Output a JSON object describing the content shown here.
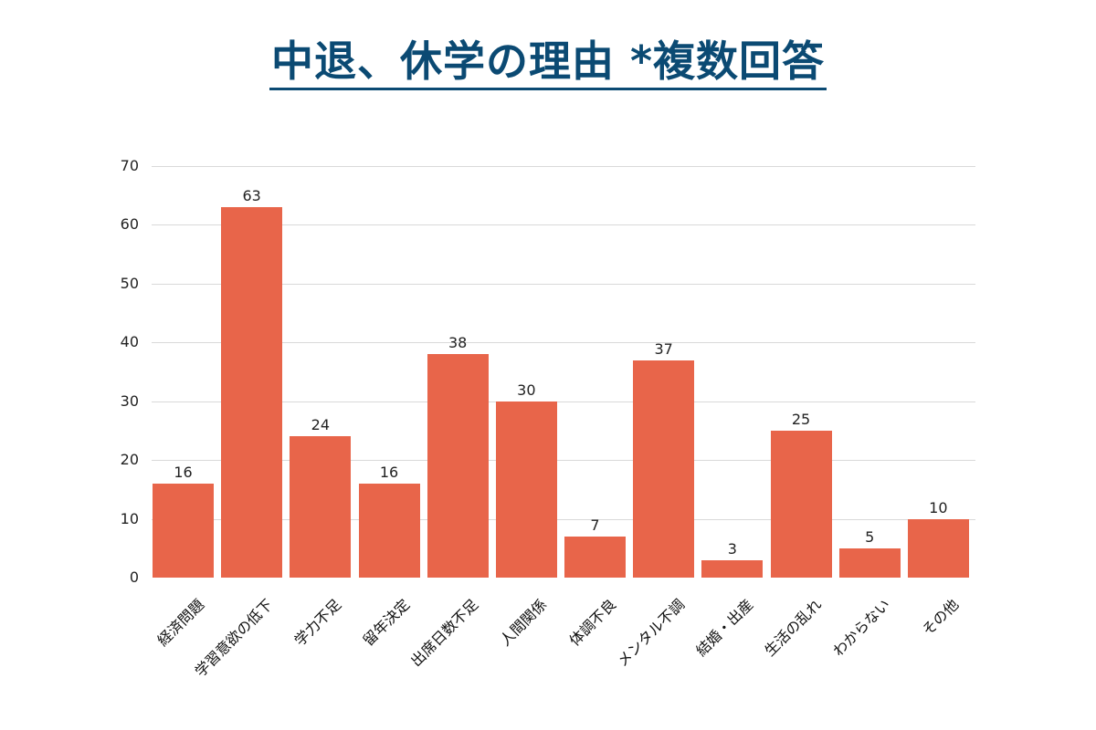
{
  "title": "中退、休学の理由 *複数回答",
  "colors": {
    "bar": "#E8654A",
    "title": "#0B4A73",
    "grid": "#d9d9d9"
  },
  "chart_data": {
    "type": "bar",
    "title": "中退、休学の理由 *複数回答",
    "xlabel": "",
    "ylabel": "",
    "ylim": [
      0,
      70
    ],
    "yticks": [
      0,
      10,
      20,
      30,
      40,
      50,
      60,
      70
    ],
    "grid": true,
    "legend": null,
    "categories": [
      "経済問題",
      "学習意欲の低下",
      "学力不足",
      "留年決定",
      "出席日数不足",
      "人間関係",
      "体調不良",
      "メンタル不調",
      "結婚・出産",
      "生活の乱れ",
      "わからない",
      "その他"
    ],
    "values": [
      16,
      63,
      24,
      16,
      38,
      30,
      7,
      37,
      3,
      25,
      5,
      10
    ],
    "data_labels": [
      "16",
      "63",
      "24",
      "16",
      "38",
      "30",
      "7",
      "37",
      "3",
      "25",
      "5",
      "10"
    ]
  }
}
